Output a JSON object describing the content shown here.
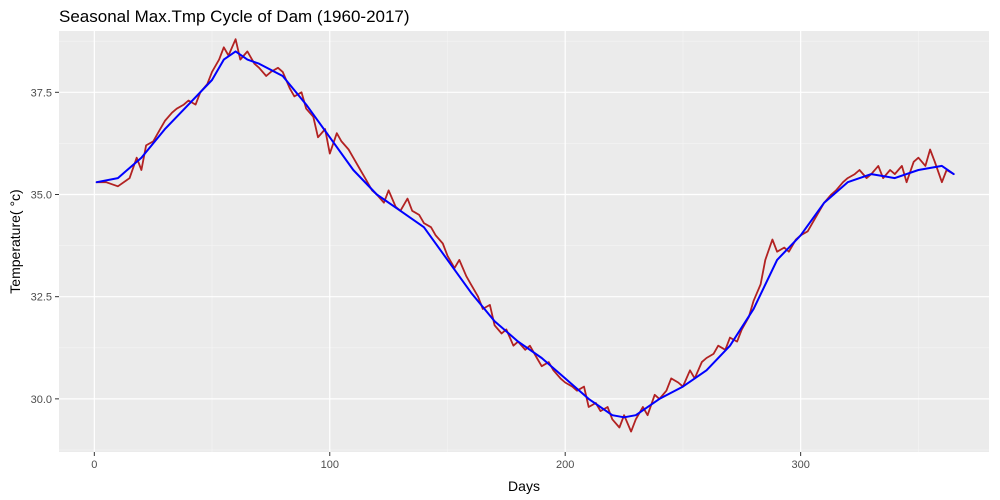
{
  "chart_data": {
    "type": "line",
    "title": "Seasonal Max.Tmp Cycle of Dam (1960-2017)",
    "xlabel": "Days",
    "ylabel": "Temperature( °c)",
    "xlim": [
      -15,
      380
    ],
    "ylim": [
      28.7,
      39.0
    ],
    "x_ticks": [
      0,
      100,
      200,
      300
    ],
    "x_tick_labels": [
      "0",
      "100",
      "200",
      "300"
    ],
    "y_ticks": [
      30.0,
      32.5,
      35.0,
      37.5
    ],
    "y_tick_labels": [
      "30.0",
      "32.5",
      "35.0",
      "37.5"
    ],
    "grid": true,
    "background": "#ebebeb",
    "series": [
      {
        "style": "jagged",
        "color": "#b22222",
        "points": [
          [
            1,
            35.3
          ],
          [
            5,
            35.3
          ],
          [
            10,
            35.2
          ],
          [
            15,
            35.4
          ],
          [
            18,
            35.9
          ],
          [
            20,
            35.6
          ],
          [
            22,
            36.2
          ],
          [
            25,
            36.3
          ],
          [
            28,
            36.6
          ],
          [
            30,
            36.8
          ],
          [
            33,
            37.0
          ],
          [
            35,
            37.1
          ],
          [
            38,
            37.2
          ],
          [
            40,
            37.3
          ],
          [
            43,
            37.2
          ],
          [
            45,
            37.5
          ],
          [
            48,
            37.7
          ],
          [
            50,
            38.0
          ],
          [
            53,
            38.3
          ],
          [
            55,
            38.6
          ],
          [
            57,
            38.4
          ],
          [
            60,
            38.8
          ],
          [
            62,
            38.3
          ],
          [
            65,
            38.5
          ],
          [
            68,
            38.2
          ],
          [
            70,
            38.1
          ],
          [
            73,
            37.9
          ],
          [
            75,
            38.0
          ],
          [
            78,
            38.1
          ],
          [
            80,
            38.0
          ],
          [
            83,
            37.6
          ],
          [
            85,
            37.4
          ],
          [
            88,
            37.5
          ],
          [
            90,
            37.1
          ],
          [
            93,
            36.9
          ],
          [
            95,
            36.4
          ],
          [
            98,
            36.6
          ],
          [
            100,
            36.0
          ],
          [
            103,
            36.5
          ],
          [
            105,
            36.3
          ],
          [
            108,
            36.1
          ],
          [
            110,
            35.9
          ],
          [
            113,
            35.6
          ],
          [
            115,
            35.4
          ],
          [
            118,
            35.1
          ],
          [
            120,
            35.0
          ],
          [
            123,
            34.8
          ],
          [
            125,
            35.1
          ],
          [
            128,
            34.7
          ],
          [
            130,
            34.6
          ],
          [
            133,
            34.9
          ],
          [
            135,
            34.6
          ],
          [
            138,
            34.5
          ],
          [
            140,
            34.3
          ],
          [
            143,
            34.2
          ],
          [
            145,
            34.0
          ],
          [
            148,
            33.8
          ],
          [
            150,
            33.5
          ],
          [
            153,
            33.2
          ],
          [
            155,
            33.4
          ],
          [
            158,
            33.0
          ],
          [
            160,
            32.8
          ],
          [
            163,
            32.5
          ],
          [
            165,
            32.2
          ],
          [
            168,
            32.3
          ],
          [
            170,
            31.8
          ],
          [
            173,
            31.6
          ],
          [
            175,
            31.7
          ],
          [
            178,
            31.3
          ],
          [
            180,
            31.4
          ],
          [
            183,
            31.2
          ],
          [
            185,
            31.3
          ],
          [
            188,
            31.0
          ],
          [
            190,
            30.8
          ],
          [
            193,
            30.9
          ],
          [
            195,
            30.7
          ],
          [
            198,
            30.5
          ],
          [
            200,
            30.4
          ],
          [
            203,
            30.3
          ],
          [
            205,
            30.2
          ],
          [
            208,
            30.3
          ],
          [
            210,
            29.8
          ],
          [
            213,
            29.9
          ],
          [
            215,
            29.7
          ],
          [
            218,
            29.8
          ],
          [
            220,
            29.5
          ],
          [
            223,
            29.3
          ],
          [
            225,
            29.6
          ],
          [
            228,
            29.2
          ],
          [
            230,
            29.5
          ],
          [
            233,
            29.8
          ],
          [
            235,
            29.6
          ],
          [
            238,
            30.1
          ],
          [
            240,
            30.0
          ],
          [
            243,
            30.2
          ],
          [
            245,
            30.5
          ],
          [
            248,
            30.4
          ],
          [
            250,
            30.3
          ],
          [
            253,
            30.7
          ],
          [
            255,
            30.5
          ],
          [
            258,
            30.9
          ],
          [
            260,
            31.0
          ],
          [
            263,
            31.1
          ],
          [
            265,
            31.3
          ],
          [
            268,
            31.2
          ],
          [
            270,
            31.5
          ],
          [
            273,
            31.4
          ],
          [
            275,
            31.7
          ],
          [
            278,
            32.0
          ],
          [
            280,
            32.4
          ],
          [
            283,
            32.8
          ],
          [
            285,
            33.4
          ],
          [
            288,
            33.9
          ],
          [
            290,
            33.6
          ],
          [
            293,
            33.7
          ],
          [
            295,
            33.6
          ],
          [
            298,
            33.9
          ],
          [
            300,
            34.0
          ],
          [
            303,
            34.1
          ],
          [
            305,
            34.3
          ],
          [
            308,
            34.6
          ],
          [
            310,
            34.8
          ],
          [
            313,
            35.0
          ],
          [
            315,
            35.1
          ],
          [
            318,
            35.3
          ],
          [
            320,
            35.4
          ],
          [
            323,
            35.5
          ],
          [
            325,
            35.6
          ],
          [
            328,
            35.4
          ],
          [
            330,
            35.5
          ],
          [
            333,
            35.7
          ],
          [
            335,
            35.4
          ],
          [
            338,
            35.6
          ],
          [
            340,
            35.5
          ],
          [
            343,
            35.7
          ],
          [
            345,
            35.3
          ],
          [
            348,
            35.8
          ],
          [
            350,
            35.9
          ],
          [
            353,
            35.7
          ],
          [
            355,
            36.1
          ],
          [
            357,
            35.8
          ],
          [
            360,
            35.3
          ],
          [
            362,
            35.6
          ],
          [
            365,
            35.5
          ]
        ]
      },
      {
        "style": "smooth",
        "color": "#0000ff",
        "points": [
          [
            1,
            35.3
          ],
          [
            10,
            35.4
          ],
          [
            20,
            35.9
          ],
          [
            30,
            36.6
          ],
          [
            40,
            37.2
          ],
          [
            50,
            37.8
          ],
          [
            55,
            38.3
          ],
          [
            60,
            38.5
          ],
          [
            65,
            38.3
          ],
          [
            70,
            38.2
          ],
          [
            80,
            37.9
          ],
          [
            90,
            37.2
          ],
          [
            100,
            36.4
          ],
          [
            110,
            35.6
          ],
          [
            120,
            35.0
          ],
          [
            130,
            34.6
          ],
          [
            140,
            34.2
          ],
          [
            150,
            33.4
          ],
          [
            160,
            32.6
          ],
          [
            170,
            31.9
          ],
          [
            180,
            31.4
          ],
          [
            190,
            31.0
          ],
          [
            200,
            30.5
          ],
          [
            210,
            30.0
          ],
          [
            220,
            29.6
          ],
          [
            225,
            29.55
          ],
          [
            230,
            29.6
          ],
          [
            240,
            30.0
          ],
          [
            250,
            30.3
          ],
          [
            260,
            30.7
          ],
          [
            270,
            31.3
          ],
          [
            280,
            32.2
          ],
          [
            290,
            33.4
          ],
          [
            300,
            34.0
          ],
          [
            310,
            34.8
          ],
          [
            320,
            35.3
          ],
          [
            330,
            35.5
          ],
          [
            340,
            35.4
          ],
          [
            350,
            35.6
          ],
          [
            360,
            35.7
          ],
          [
            365,
            35.5
          ]
        ]
      }
    ]
  }
}
